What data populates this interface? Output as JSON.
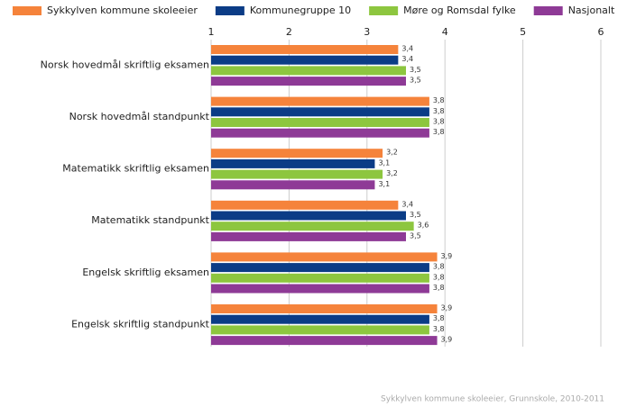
{
  "chart_data": {
    "type": "hbar",
    "categories": [
      "Norsk hovedmål skriftlig eksamen",
      "Norsk hovedmål standpunkt",
      "Matematikk skriftlig eksamen",
      "Matematikk standpunkt",
      "Engelsk skriftlig eksamen",
      "Engelsk skriftlig standpunkt"
    ],
    "series": [
      {
        "name": "Sykkylven kommune skoleeier",
        "color": "#f5833b",
        "values": [
          3.4,
          3.8,
          3.2,
          3.4,
          3.9,
          3.9
        ],
        "value_labels": [
          "3,4",
          "3,8",
          "3,2",
          "3,4",
          "3,9",
          "3,9"
        ]
      },
      {
        "name": "Kommunegruppe 10",
        "color": "#0b3c86",
        "values": [
          3.4,
          3.8,
          3.1,
          3.5,
          3.8,
          3.8
        ],
        "value_labels": [
          "3,4",
          "3,8",
          "3,1",
          "3,5",
          "3,8",
          "3,8"
        ]
      },
      {
        "name": "Møre og Romsdal fylke",
        "color": "#8dc63f",
        "values": [
          3.5,
          3.8,
          3.2,
          3.6,
          3.8,
          3.8
        ],
        "value_labels": [
          "3,5",
          "3,8",
          "3,2",
          "3,6",
          "3,8",
          "3,8"
        ]
      },
      {
        "name": "Nasjonalt",
        "color": "#8e3a96",
        "values": [
          3.5,
          3.8,
          3.1,
          3.5,
          3.8,
          3.9
        ],
        "value_labels": [
          "3,5",
          "3,8",
          "3,1",
          "3,5",
          "3,8",
          "3,9"
        ]
      }
    ],
    "xlim": [
      1,
      6
    ],
    "xticks": [
      1,
      2,
      3,
      4,
      5,
      6
    ],
    "grid": true,
    "source": "Sykkylven kommune skoleeier, Grunnskole, 2010-2011"
  }
}
